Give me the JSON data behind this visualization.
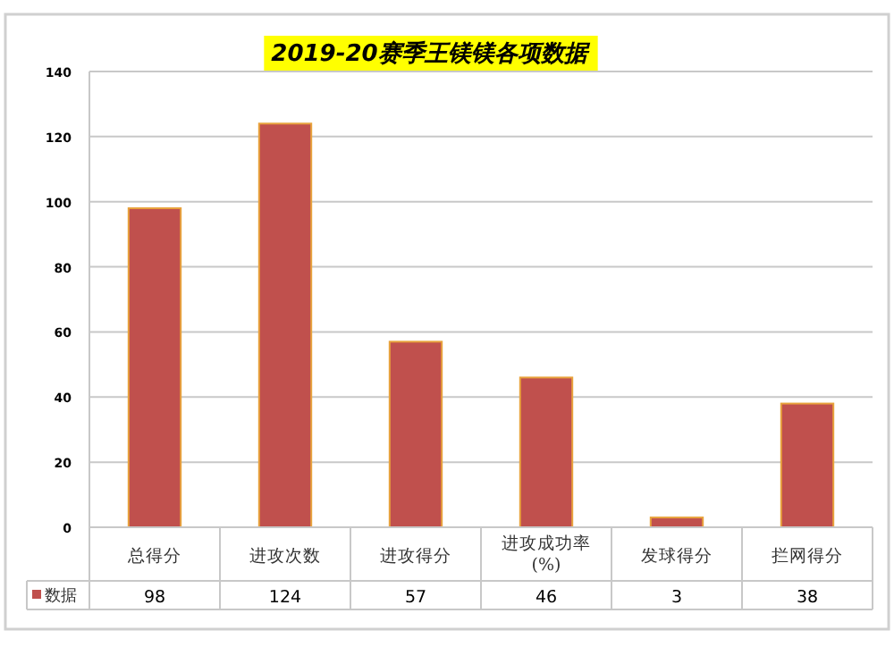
{
  "chart_data": {
    "type": "bar",
    "title": "2019-20赛季王镁镁各项数据",
    "categories": [
      "总得分",
      "进攻次数",
      "进攻得分",
      "进攻成功率(%)",
      "发球得分",
      "拦网得分"
    ],
    "series": [
      {
        "name": "数据",
        "color": "#c0504d",
        "values": [
          98,
          124,
          57,
          46,
          3,
          38
        ]
      }
    ],
    "ylim": [
      0,
      140
    ],
    "yticks": [
      0,
      20,
      40,
      60,
      80,
      100,
      120,
      140
    ],
    "grid": "y",
    "data_labels": true,
    "legend": "bottom"
  }
}
